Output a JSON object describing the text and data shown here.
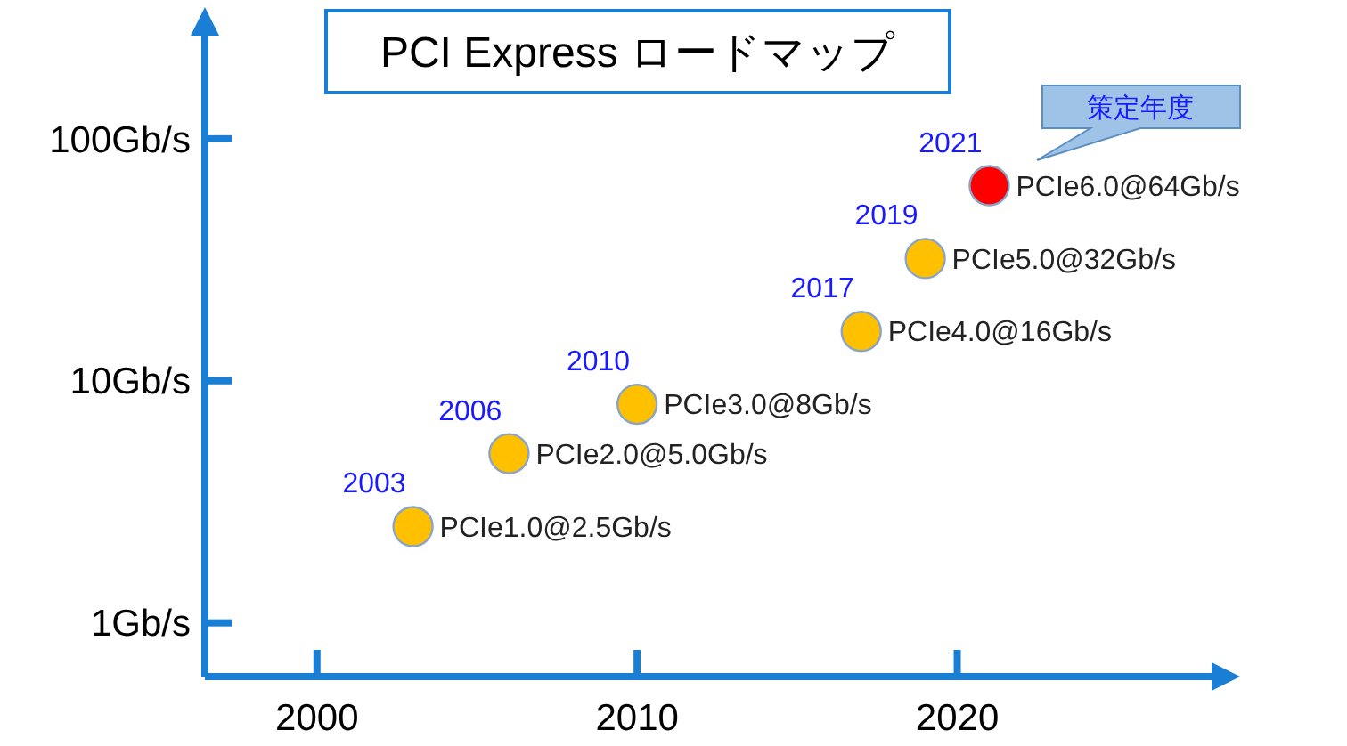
{
  "chart_data": {
    "type": "scatter",
    "title": "PCI Express  ロードマップ",
    "log": "y",
    "marker": "circle",
    "grid": false,
    "x": [
      2003,
      2006,
      2010,
      2017,
      2019,
      2021
    ],
    "values": [
      2.5,
      5,
      8,
      16,
      32,
      64
    ],
    "colors": [
      "#ffc000",
      "#ffc000",
      "#ffc000",
      "#ffc000",
      "#ffc000",
      "#ff0000"
    ],
    "value_labels": [
      "PCIe1.0@2.5Gb/s",
      "PCIe2.0@5.0Gb/s",
      "PCIe3.0@8Gb/s",
      "PCIe4.0@16Gb/s",
      "PCIe5.0@32Gb/s",
      "PCIe6.0@64Gb/s"
    ],
    "xlim": [
      1996.5,
      2028.5
    ],
    "xticks": [
      2000,
      2010,
      2020
    ],
    "ylim": [
      0.6,
      316
    ],
    "yticks": [
      {
        "value": 1,
        "label": "1Gb/s"
      },
      {
        "value": 10,
        "label": "10Gb/s"
      },
      {
        "value": 100,
        "label": "100Gb/s"
      }
    ],
    "annotations": [
      {
        "text": "2003",
        "x": 2003,
        "y": 2.5
      },
      {
        "text": "2006",
        "x": 2006,
        "y": 5
      },
      {
        "text": "2010",
        "x": 2010,
        "y": 8
      },
      {
        "text": "2017",
        "x": 2017,
        "y": 16
      },
      {
        "text": "2019",
        "x": 2019,
        "y": 32
      },
      {
        "text": "2021",
        "x": 2021,
        "y": 64
      },
      "策定年度"
    ]
  }
}
